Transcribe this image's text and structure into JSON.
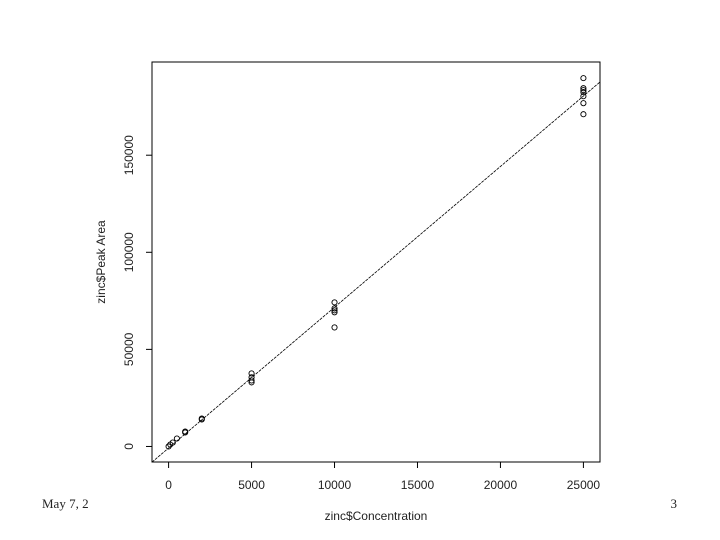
{
  "chart_data": {
    "type": "scatter",
    "xlabel": "zinc$Concentration",
    "ylabel": "zinc$Peak Area",
    "x": [
      0,
      100,
      250,
      500,
      1000,
      1000,
      2000,
      2000,
      5000,
      5000,
      5000,
      5000,
      10000,
      10000,
      10000,
      10000,
      10000,
      25000,
      25000,
      25000,
      25000,
      25000,
      25000,
      25000
    ],
    "y": [
      0,
      1000,
      2000,
      4100,
      7700,
      7200,
      14400,
      13900,
      37600,
      35600,
      34000,
      33000,
      74200,
      71100,
      70100,
      69100,
      61300,
      189700,
      184500,
      183500,
      182500,
      180400,
      176800,
      171100
    ],
    "color": "#000000",
    "abline": {
      "intercept": -800,
      "slope": 7.25
    },
    "xlim": [
      -1000,
      26000
    ],
    "xticks": [
      0,
      5000,
      10000,
      15000,
      20000,
      25000
    ],
    "ylim": [
      -8000,
      198000
    ],
    "yticks": [
      0,
      50000,
      100000,
      150000
    ]
  },
  "footer": {
    "date": "May 7, 2",
    "page": "3"
  }
}
